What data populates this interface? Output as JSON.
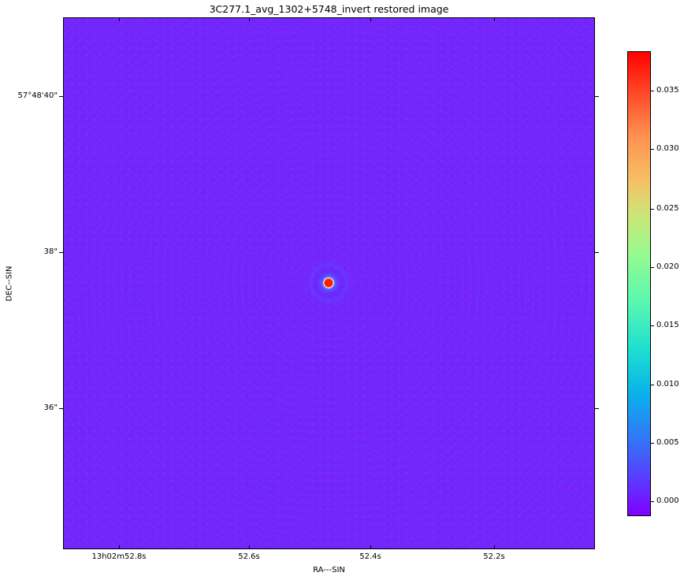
{
  "chart_data": {
    "type": "heatmap",
    "title": "3C277.1_avg_1302+5748_invert restored image",
    "xlabel": "RA---SIN",
    "ylabel": "DEC--SIN",
    "x_ticks": [
      "13h02m52.8s",
      "52.6s",
      "52.4s",
      "52.2s"
    ],
    "y_ticks": [
      "57°48'40\"",
      "38\"",
      "36\""
    ],
    "colormap": "rainbow",
    "colorbar": {
      "range": [
        -0.0012,
        0.0385
      ],
      "ticks": [
        "0.000",
        "0.005",
        "0.010",
        "0.015",
        "0.020",
        "0.025",
        "0.030",
        "0.035"
      ]
    },
    "features": [
      {
        "label": "bright point source",
        "ra_approx": "13h02m52.47s",
        "dec_approx": "57°48'37.6\"",
        "peak": 0.0385
      }
    ],
    "background_level": 0.0,
    "grid": false
  },
  "colors": {
    "background": "#7a20fa",
    "peak": "#ff0000"
  }
}
